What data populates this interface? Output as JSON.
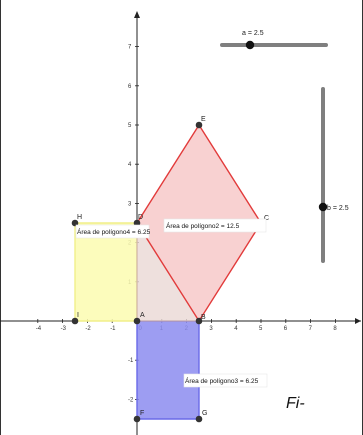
{
  "axes": {
    "x_ticks": [
      "-4",
      "-3",
      "-2",
      "-1",
      "0",
      "1",
      "2",
      "3",
      "4",
      "5",
      "6",
      "7",
      "8"
    ],
    "y_ticks": [
      "7",
      "6",
      "5",
      "4",
      "3",
      "2",
      "1",
      "-1",
      "-2"
    ],
    "xlim": [
      -4.5,
      8.6
    ],
    "ylim": [
      -2.6,
      7.8
    ]
  },
  "points": {
    "A": {
      "label": "A",
      "x": 0,
      "y": 0
    },
    "B": {
      "label": "B",
      "x": 2.5,
      "y": 0
    },
    "C": {
      "label": "C",
      "x": 5,
      "y": 2.5
    },
    "D": {
      "label": "D",
      "x": 0,
      "y": 2.5
    },
    "E": {
      "label": "E",
      "x": 2.5,
      "y": 5
    },
    "F": {
      "label": "F",
      "x": 0,
      "y": -2.5
    },
    "G": {
      "label": "G",
      "x": 2.5,
      "y": -2.5
    },
    "H": {
      "label": "H",
      "x": -2.5,
      "y": 2.5
    },
    "I": {
      "label": "I",
      "x": -2.5,
      "y": 0
    }
  },
  "sliders": {
    "a": {
      "label": "a = 2.5",
      "value": 2.5
    },
    "b": {
      "label": "b = 2.5",
      "value": 2.5
    }
  },
  "areas": {
    "poligono2": "Área de polígono2 = 12.5",
    "poligono3": "Área de polígono3 = 6.25",
    "poligono4": "Área de polígono4 = 6.25"
  },
  "colors": {
    "red": "#e23b3b",
    "red_fill": "#f6c6c6",
    "blue": "#6a6ae8",
    "blue_fill": "#8c8cf0",
    "yellow": "#f1ef8a",
    "yellow_fill": "#fbfbb0",
    "point": "#333333",
    "slider": "#7f7f7f"
  },
  "caption": "Fi-"
}
